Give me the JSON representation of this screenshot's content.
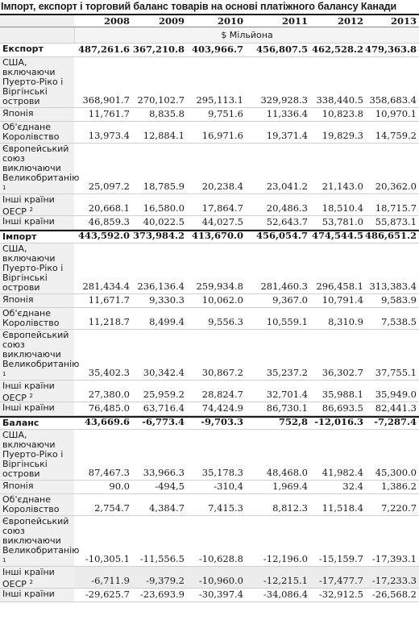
{
  "title": "Імпорт, експорт і торговий баланс товарів на основі платіжного балансу Канади",
  "years": [
    "2008",
    "2009",
    "2010",
    "2011",
    "2012",
    "2013"
  ],
  "unit": "$ Мільйона",
  "rows": [
    {
      "label": "Експорт",
      "bold": true,
      "h": 17,
      "values": [
        "487,261.6",
        "367,210.8",
        "403,966.7",
        "456,807.5",
        "462,528.2",
        "479,363.8"
      ]
    },
    {
      "label": "США, включаючи Пуерто-Ріко і Віргінські острови",
      "h": 63,
      "values": [
        "368,901.7",
        "270,102.7",
        "295,113.1",
        "329,928.3",
        "338,440.5",
        "358,683.4"
      ]
    },
    {
      "label": "Японія",
      "h": 17,
      "values": [
        "11,761.7",
        "8,835.8",
        "9,751.6",
        "11,336.4",
        "10,823.8",
        "10,970.1"
      ]
    },
    {
      "label": "Об'єднане Королівство",
      "h": 27,
      "values": [
        "13,973.4",
        "12,884.1",
        "16,971.6",
        "19,371.4",
        "19,829.3",
        "14,759.2"
      ]
    },
    {
      "label": "Європейський союз виключаючи Великобританію",
      "sup": "1",
      "h": 63,
      "values": [
        "25,097.2",
        "18,785.9",
        "20,238.4",
        "23,041.2",
        "21,143.0",
        "20,362.0"
      ]
    },
    {
      "label": "Інші країни ОЕСР",
      "sup": "2",
      "h": 27,
      "values": [
        "20,668.1",
        "16,580.0",
        "17,864.7",
        "20,486.3",
        "18,510.4",
        "18,715.7"
      ]
    },
    {
      "label": "Інші країни",
      "h": 17,
      "values": [
        "46,859.3",
        "40,022.5",
        "44,027.5",
        "52,643.7",
        "53,781.0",
        "55,873.1"
      ]
    },
    {
      "label": "Імпорт",
      "bold": true,
      "h": 17,
      "values": [
        "443,592.0",
        "373,984.2",
        "413,670.0",
        "456,054.7",
        "474,544.5",
        "486,651.2"
      ]
    },
    {
      "label": "США, включаючи Пуерто-Ріко і Віргінські острови",
      "h": 63,
      "values": [
        "281,434.4",
        "236,136.4",
        "259,934.8",
        "281,460.3",
        "296,458.1",
        "313,383.4"
      ]
    },
    {
      "label": "Японія",
      "h": 17,
      "values": [
        "11,671.7",
        "9,330.3",
        "10,062.0",
        "9,367.0",
        "10,791.4",
        "9,583.9"
      ]
    },
    {
      "label": "Об'єднане Королівство",
      "h": 27,
      "values": [
        "11,218.7",
        "8,499.4",
        "9,556.3",
        "10,559.1",
        "8,310.9",
        "7,538.5"
      ]
    },
    {
      "label": "Європейський союз виключаючи Великобританію",
      "sup": "1",
      "h": 63,
      "values": [
        "35,402.3",
        "30,342.4",
        "30,867.2",
        "35,237.2",
        "36,302.7",
        "37,755.1"
      ]
    },
    {
      "label": "Інші країни ОЕСР",
      "sup": "2",
      "h": 27,
      "values": [
        "27,380.0",
        "25,959.2",
        "28,824.7",
        "32,701.4",
        "35,988.1",
        "35,949.0"
      ]
    },
    {
      "label": "Інші країни",
      "h": 17,
      "values": [
        "76,485.0",
        "63,716.4",
        "74,424.9",
        "86,730.1",
        "86,693.5",
        "82,441.3"
      ]
    },
    {
      "label": "Баланс",
      "bold": true,
      "h": 17,
      "values": [
        "43,669.6",
        "-6,773.4",
        "-9,703.3",
        "752,8",
        "-12,016.3",
        "-7,287.4"
      ]
    },
    {
      "label": "США, включаючи Пуерто-Ріко і Віргінські острови",
      "h": 63,
      "values": [
        "87,467.3",
        "33,966.3",
        "35,178.3",
        "48,468.0",
        "41,982.4",
        "45,300.0"
      ]
    },
    {
      "label": "Японія",
      "h": 17,
      "values": [
        "90.0",
        "-494,5",
        "-310,4",
        "1,969.4",
        "32.4",
        "1,386.2"
      ]
    },
    {
      "label": "Об'єднане Королівство",
      "h": 27,
      "values": [
        "2,754.7",
        "4,384.7",
        "7,415.3",
        "8,812.3",
        "11,518.4",
        "7,220.7"
      ]
    },
    {
      "label": "Європейський союз виключаючи Великобританію",
      "sup": "1",
      "h": 63,
      "values": [
        "-10,305.1",
        "-11,556.5",
        "-10,628.8",
        "-12,196.0",
        "-15,159.7",
        "-17,393.1"
      ]
    },
    {
      "label": "Інші країни ОЕСР",
      "sup": "2",
      "h": 27,
      "gray": true,
      "values": [
        "-6,711.9",
        "-9,379.2",
        "-10,960.0",
        "-12,215.1",
        "-17,477.7",
        "-17,233.3"
      ]
    },
    {
      "label": "Інші країни",
      "h": 17,
      "values": [
        "-29,625.7",
        "-23,693.9",
        "-30,397.4",
        "-34,086.4",
        "-32,912.5",
        "-26,568.2"
      ]
    }
  ]
}
